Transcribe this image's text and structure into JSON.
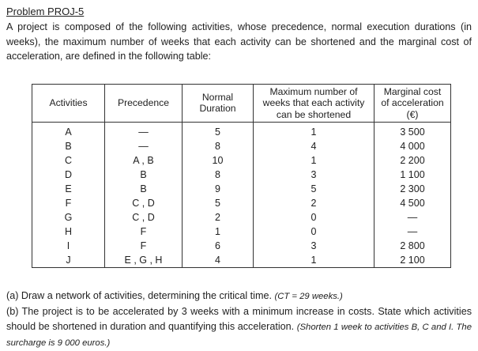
{
  "title": "Problem PROJ-5",
  "intro": "A project is composed of the following activities, whose precedence, normal execution durations (in weeks), the maximum number of weeks that each activity can be shortened and the marginal cost of acceleration, are defined in the following table:",
  "table": {
    "headers": [
      "Activities",
      "Precedence",
      "Normal\nDuration",
      "Maximum number of\nweeks that each activity\ncan be shortened",
      "Marginal cost\nof acceleration\n(€)"
    ],
    "rows": [
      [
        "A",
        "—",
        "5",
        "1",
        "3 500"
      ],
      [
        "B",
        "—",
        "8",
        "4",
        "4 000"
      ],
      [
        "C",
        "A , B",
        "10",
        "1",
        "2 200"
      ],
      [
        "D",
        "B",
        "8",
        "3",
        "1 100"
      ],
      [
        "E",
        "B",
        "9",
        "5",
        "2 300"
      ],
      [
        "F",
        "C , D",
        "5",
        "2",
        "4 500"
      ],
      [
        "G",
        "C , D",
        "2",
        "0",
        "—"
      ],
      [
        "H",
        "F",
        "1",
        "0",
        "—"
      ],
      [
        "I",
        "F",
        "6",
        "3",
        "2 800"
      ],
      [
        "J",
        "E , G , H",
        "4",
        "1",
        "2 100"
      ]
    ]
  },
  "questions": {
    "a_text": "(a) Draw a network of activities, determining the critical time. ",
    "a_note": "(CT = 29 weeks.)",
    "b_text": "(b) The project is to be accelerated by 3 weeks with a minimum increase in costs. State which activities should be shortened in duration and quantifying this acceleration. ",
    "b_note": "(Shorten 1 week to activities B, C and I. The surcharge is 9 000 euros.)"
  }
}
